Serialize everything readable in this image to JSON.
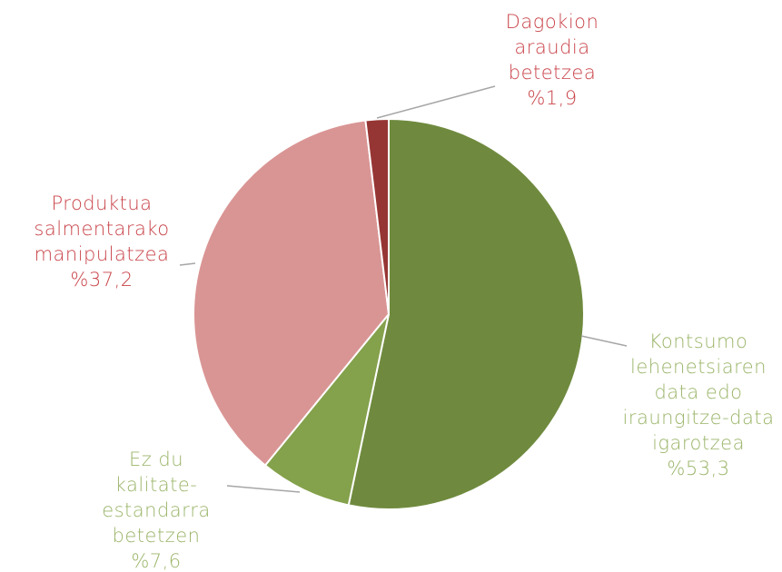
{
  "chart_data": {
    "type": "pie",
    "categories": [
      "Kontsumo lehenetsiaren data edo iraungitze-data igarotzea",
      "Ez du kalitate-estandarra betetzen",
      "Produktua salmentarako manipulatzea",
      "Dagokion araudia betetzea"
    ],
    "values": [
      53.3,
      7.6,
      37.2,
      1.9
    ],
    "value_labels": [
      "%53,3",
      "%7,6",
      "%37,2",
      "%1,9"
    ],
    "colors": [
      "#6f8a3e",
      "#84a14b",
      "#d99594",
      "#963634"
    ],
    "label_colors": [
      "#9bb56a",
      "#9bb56a",
      "#c9444a",
      "#c9444a"
    ]
  }
}
